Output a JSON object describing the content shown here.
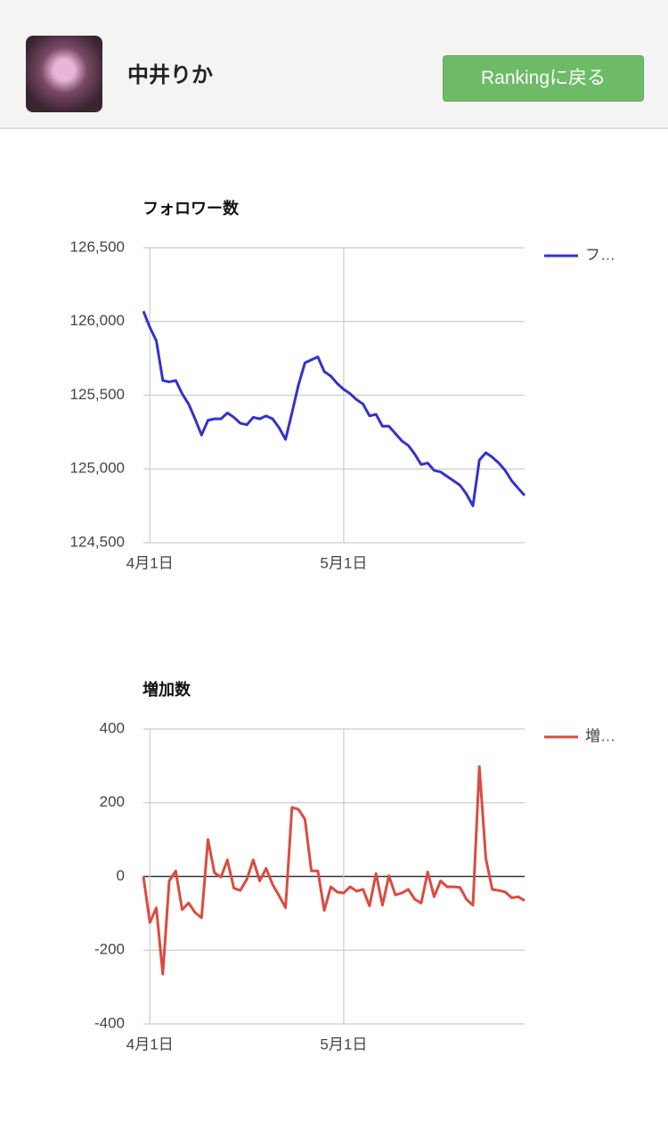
{
  "header": {
    "name": "中井りか",
    "button": "Rankingに戻る"
  },
  "chart_data": [
    {
      "type": "line",
      "title": "フォロワー数",
      "categories": [
        null,
        "4月1日",
        null,
        null,
        null,
        null,
        null,
        null,
        null,
        null,
        null,
        null,
        null,
        null,
        null,
        null,
        null,
        null,
        null,
        null,
        null,
        null,
        null,
        null,
        null,
        null,
        null,
        null,
        null,
        null,
        null,
        "5月1日",
        null,
        null,
        null,
        null,
        null,
        null,
        null,
        null,
        null,
        null,
        null,
        null,
        null,
        null,
        null,
        null,
        null,
        null,
        null,
        null,
        null,
        null,
        null,
        null,
        null,
        null,
        null,
        null
      ],
      "series": [
        {
          "name": "フ…",
          "color": "#3333cc",
          "values": [
            126070,
            125960,
            125870,
            125600,
            125590,
            125600,
            125510,
            125440,
            125340,
            125230,
            125330,
            125340,
            125340,
            125380,
            125350,
            125310,
            125300,
            125350,
            125340,
            125360,
            125340,
            125280,
            125200,
            125380,
            125570,
            125720,
            125740,
            125760,
            125660,
            125630,
            125580,
            125540,
            125510,
            125470,
            125440,
            125360,
            125370,
            125290,
            125290,
            125240,
            125190,
            125160,
            125100,
            125030,
            125040,
            124990,
            124980,
            124950,
            124920,
            124890,
            124830,
            124750,
            125060,
            125110,
            125080,
            125040,
            124990,
            124920,
            124870,
            124820
          ]
        }
      ],
      "ylim": [
        124500,
        126500
      ],
      "yticks": [
        {
          "value": 124500,
          "label": "124,500"
        },
        {
          "value": 125000,
          "label": "125,000"
        },
        {
          "value": 125500,
          "label": "125,500"
        },
        {
          "value": 126000,
          "label": "126,000"
        },
        {
          "value": 126500,
          "label": "126,500"
        }
      ],
      "grid": true,
      "legend": "right"
    },
    {
      "type": "line",
      "title": "増加数",
      "categories": [
        null,
        "4月1日",
        null,
        null,
        null,
        null,
        null,
        null,
        null,
        null,
        null,
        null,
        null,
        null,
        null,
        null,
        null,
        null,
        null,
        null,
        null,
        null,
        null,
        null,
        null,
        null,
        null,
        null,
        null,
        null,
        null,
        "5月1日",
        null,
        null,
        null,
        null,
        null,
        null,
        null,
        null,
        null,
        null,
        null,
        null,
        null,
        null,
        null,
        null,
        null,
        null,
        null,
        null,
        null,
        null,
        null,
        null,
        null,
        null,
        null,
        null
      ],
      "series": [
        {
          "name": "増…",
          "color": "#dc4b40",
          "values": [
            0,
            -125,
            -85,
            -265,
            -12,
            15,
            -90,
            -72,
            -98,
            -112,
            100,
            10,
            -2,
            45,
            -32,
            -38,
            -8,
            45,
            -12,
            22,
            -22,
            -52,
            -85,
            187,
            182,
            155,
            15,
            15,
            -92,
            -28,
            -42,
            -45,
            -28,
            -40,
            -35,
            -80,
            8,
            -78,
            2,
            -50,
            -45,
            -35,
            -62,
            -72,
            12,
            -55,
            -12,
            -28,
            -28,
            -30,
            -62,
            -78,
            298,
            48,
            -35,
            -38,
            -42,
            -58,
            -55,
            -65
          ]
        }
      ],
      "ylim": [
        -400,
        400
      ],
      "yticks": [
        -400,
        -200,
        0,
        200,
        400
      ],
      "grid": true,
      "legend": "right"
    }
  ]
}
